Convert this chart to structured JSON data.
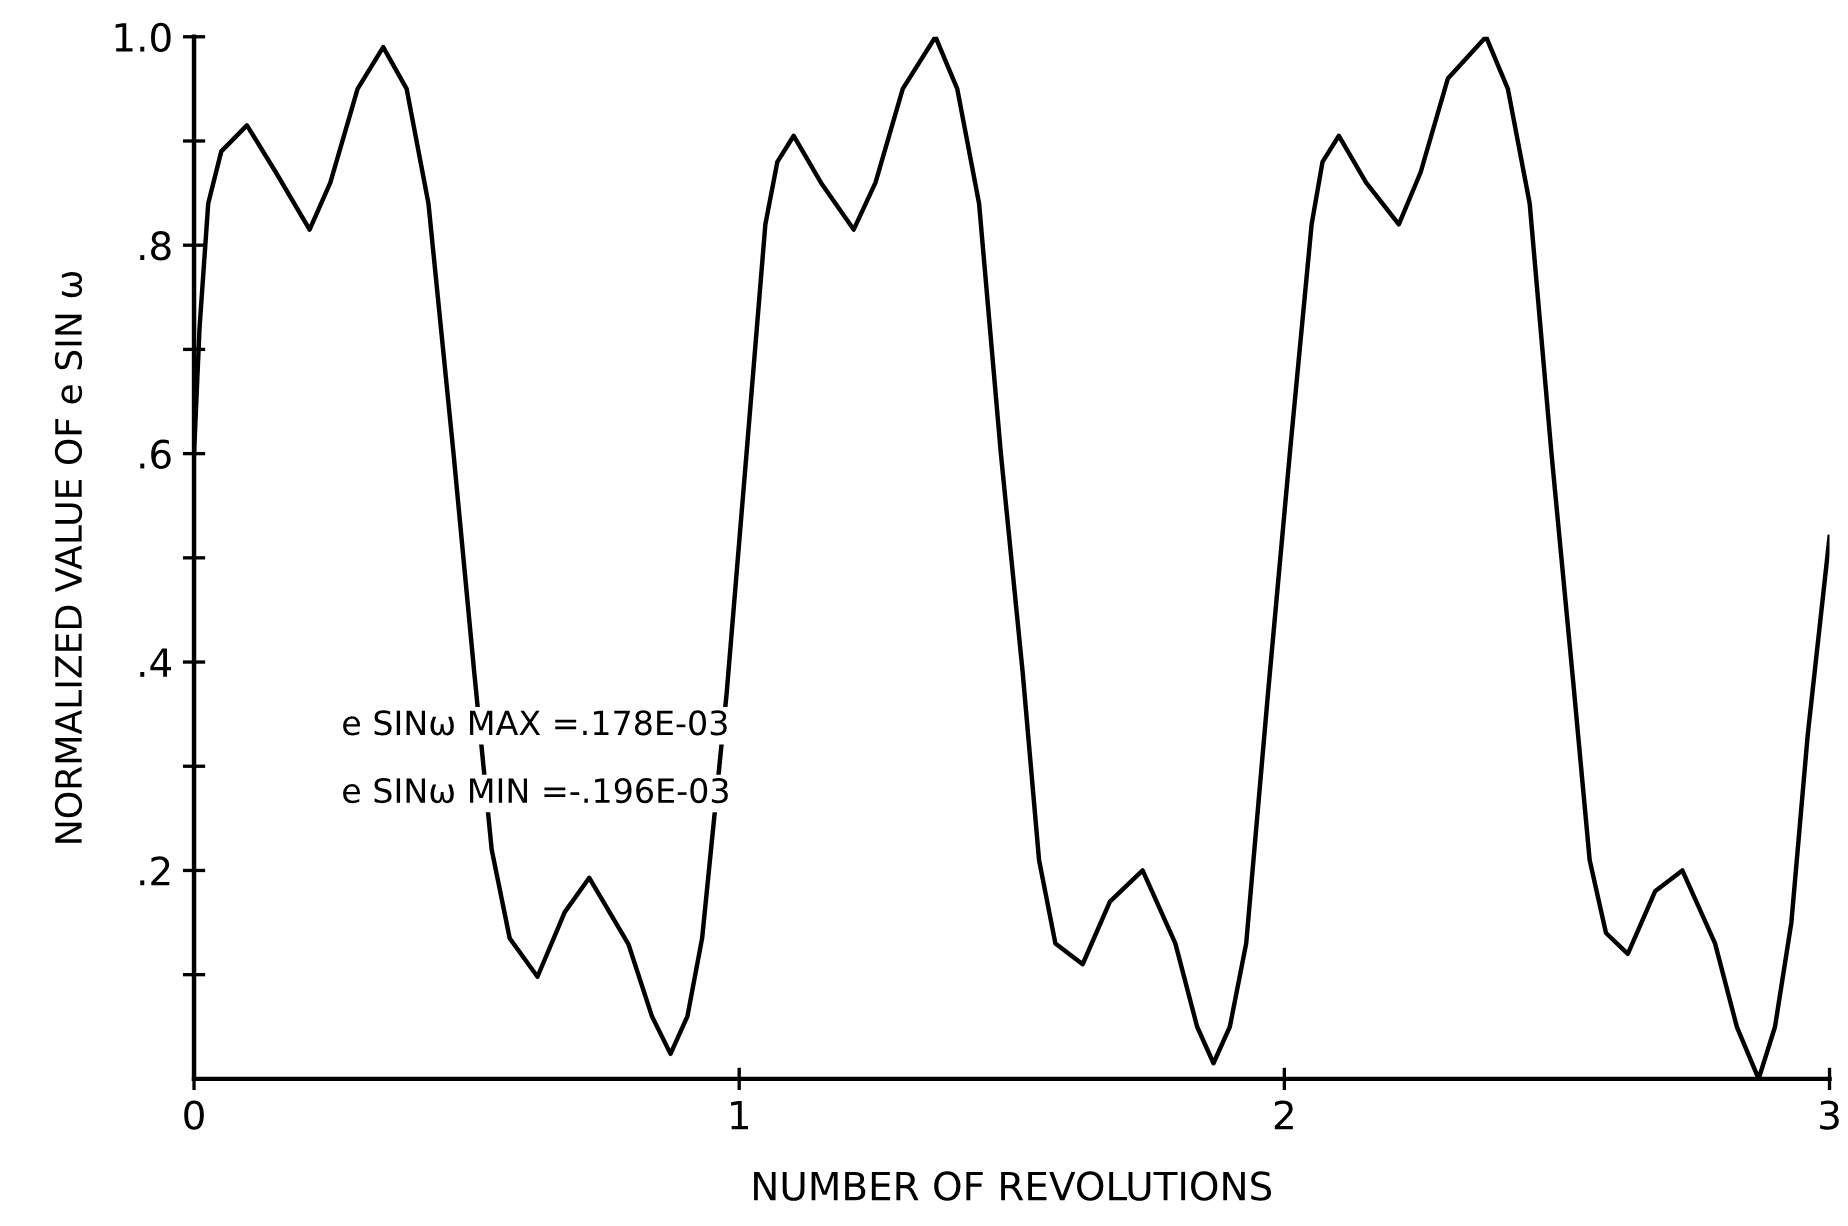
{
  "chart_data": {
    "type": "line",
    "xlabel": "NUMBER OF REVOLUTIONS",
    "ylabel": "NORMALIZED VALUE OF e SIN ω",
    "annotations": [
      "e SINω MAX =.178E-03",
      "e SINω MIN =-.196E-03"
    ],
    "xlim": [
      0,
      3
    ],
    "xticks": [
      0,
      1,
      2,
      3
    ],
    "ylim": [
      0,
      1.0
    ],
    "yticks": [
      {
        "value": 0.1,
        "label": null
      },
      {
        "value": 0.2,
        "label": ".2"
      },
      {
        "value": 0.3,
        "label": null
      },
      {
        "value": 0.4,
        "label": ".4"
      },
      {
        "value": 0.5,
        "label": null
      },
      {
        "value": 0.6,
        "label": ".6"
      },
      {
        "value": 0.7,
        "label": null
      },
      {
        "value": 0.8,
        "label": ".8"
      },
      {
        "value": 0.9,
        "label": null
      },
      {
        "value": 1.0,
        "label": "1.0"
      }
    ],
    "grid": false,
    "legend": false,
    "series": [
      {
        "color": "#000000",
        "x": [
          0,
          0.01,
          0.026,
          0.05,
          0.097,
          0.15,
          0.212,
          0.25,
          0.3,
          0.347,
          0.39,
          0.43,
          0.476,
          0.514,
          0.546,
          0.579,
          0.63,
          0.68,
          0.725,
          0.797,
          0.84,
          0.874,
          0.905,
          0.932,
          0.977,
          1.015,
          1.048,
          1.07,
          1.1,
          1.15,
          1.21,
          1.25,
          1.3,
          1.36,
          1.4,
          1.44,
          1.48,
          1.52,
          1.55,
          1.58,
          1.63,
          1.68,
          1.74,
          1.8,
          1.84,
          1.87,
          1.9,
          1.93,
          1.97,
          2.01,
          2.05,
          2.07,
          2.1,
          2.15,
          2.21,
          2.25,
          2.3,
          2.37,
          2.41,
          2.45,
          2.49,
          2.53,
          2.56,
          2.59,
          2.63,
          2.68,
          2.73,
          2.79,
          2.83,
          2.87,
          2.9,
          2.93,
          2.96,
          3.0
        ],
        "values": [
          0.6,
          0.72,
          0.84,
          0.89,
          0.915,
          0.87,
          0.815,
          0.86,
          0.95,
          0.99,
          0.95,
          0.84,
          0.6,
          0.39,
          0.22,
          0.135,
          0.098,
          0.16,
          0.193,
          0.129,
          0.06,
          0.024,
          0.06,
          0.135,
          0.37,
          0.61,
          0.82,
          0.88,
          0.905,
          0.86,
          0.815,
          0.86,
          0.95,
          1.0,
          0.95,
          0.84,
          0.6,
          0.39,
          0.21,
          0.13,
          0.11,
          0.17,
          0.2,
          0.13,
          0.05,
          0.015,
          0.05,
          0.13,
          0.37,
          0.6,
          0.82,
          0.88,
          0.905,
          0.86,
          0.82,
          0.87,
          0.96,
          1.0,
          0.95,
          0.84,
          0.6,
          0.38,
          0.21,
          0.14,
          0.12,
          0.18,
          0.2,
          0.13,
          0.05,
          0.0,
          0.05,
          0.15,
          0.33,
          0.52
        ]
      }
    ]
  }
}
